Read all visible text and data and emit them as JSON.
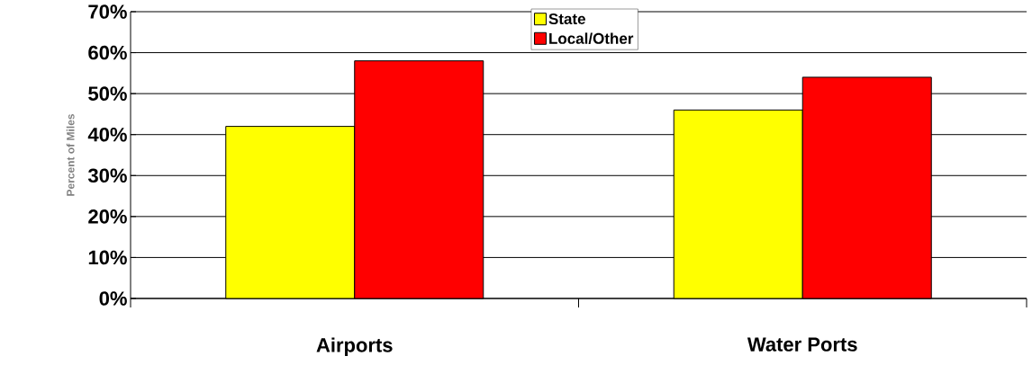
{
  "chart_data": {
    "type": "bar",
    "ylabel": "Percent of Miles",
    "categories": [
      "Airports",
      "Water Ports"
    ],
    "series": [
      {
        "name": "State",
        "color": "#ffff00",
        "values": [
          42,
          46
        ]
      },
      {
        "name": "Local/Other",
        "color": "#ff0000",
        "values": [
          58,
          54
        ]
      }
    ],
    "ylim": [
      0,
      70
    ],
    "yticks": [
      {
        "value": 0,
        "label": "0%"
      },
      {
        "value": 10,
        "label": "10%"
      },
      {
        "value": 20,
        "label": "20%"
      },
      {
        "value": 30,
        "label": "30%"
      },
      {
        "value": 40,
        "label": "40%"
      },
      {
        "value": 50,
        "label": "50%"
      },
      {
        "value": 60,
        "label": "60%"
      },
      {
        "value": 70,
        "label": "70%"
      }
    ],
    "grid": "y",
    "legend": "top"
  }
}
